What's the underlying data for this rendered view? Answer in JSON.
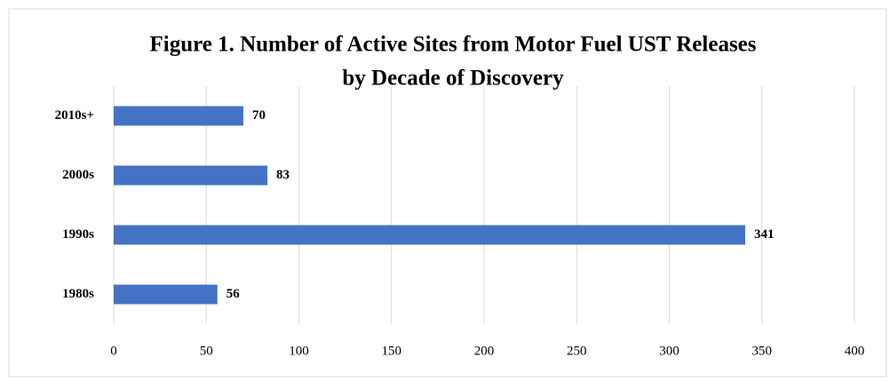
{
  "chart_data": {
    "type": "bar",
    "orientation": "horizontal",
    "title": [
      "Figure 1. Number of Active Sites from Motor Fuel UST Releases",
      "by Decade of Discovery"
    ],
    "categories": [
      "2010s+",
      "2000s",
      "1990s",
      "1980s"
    ],
    "values": [
      70,
      83,
      341,
      56
    ],
    "color": "#4472c4",
    "xlim": [
      0,
      400
    ],
    "xticks": [
      0,
      50,
      100,
      150,
      200,
      250,
      300,
      350,
      400
    ],
    "grid": true
  }
}
